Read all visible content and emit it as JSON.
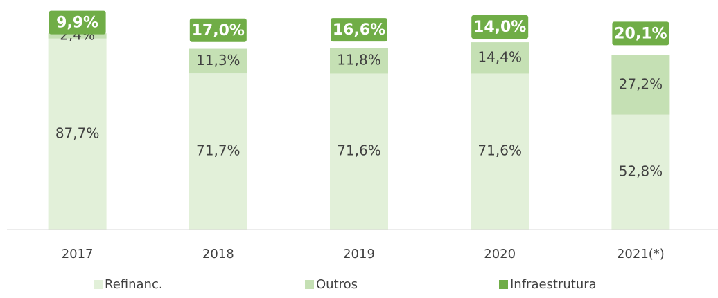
{
  "chart_data": {
    "type": "stacked_bar",
    "categories": [
      "2017",
      "2018",
      "2019",
      "2020",
      "2021(*)"
    ],
    "ylim": [
      0,
      100
    ],
    "series": [
      {
        "name": "Refinanc.",
        "color": "#e2f0d9",
        "values": [
          87.7,
          71.7,
          71.6,
          71.6,
          52.8
        ],
        "value_labels": [
          "87,7%",
          "71,7%",
          "71,6%",
          "71,6%",
          "52,8%"
        ]
      },
      {
        "name": "Outros",
        "color": "#c5e0b4",
        "values": [
          2.4,
          11.3,
          11.8,
          14.4,
          27.2
        ],
        "value_labels": [
          "2,4%",
          "11,3%",
          "11,8%",
          "14,4%",
          "27,2%"
        ]
      },
      {
        "name": "Infraestrutura",
        "color": "#70ad47",
        "values": [
          9.9,
          17.0,
          16.6,
          14.0,
          20.1
        ],
        "value_labels": [
          "9,9%",
          "17,0%",
          "16,6%",
          "14,0%",
          "20,1%"
        ]
      }
    ]
  }
}
